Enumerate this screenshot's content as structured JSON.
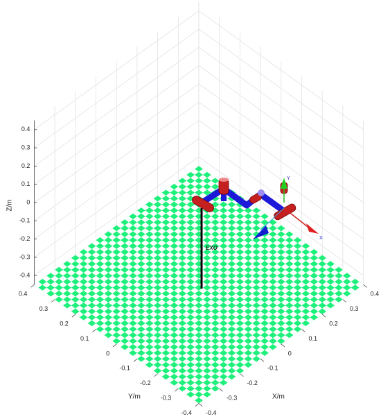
{
  "chart_data": {
    "type": "robot-3d",
    "robot_name": "EXO",
    "frame_labels": [
      "Y",
      "X"
    ],
    "xlabel": "X/m",
    "ylabel": "Y/m",
    "zlabel": "Z/m",
    "xlim": [
      -0.4,
      0.4
    ],
    "ylim": [
      -0.4,
      0.4
    ],
    "zlim": [
      -0.45,
      0.45
    ],
    "xticks": [
      -0.4,
      -0.3,
      -0.2,
      -0.1,
      0,
      0.1,
      0.2,
      0.3,
      0.4
    ],
    "yticks": [
      -0.4,
      -0.3,
      -0.2,
      -0.1,
      0,
      0.1,
      0.2,
      0.3,
      0.4
    ],
    "zticks": [
      -0.4,
      -0.3,
      -0.2,
      -0.1,
      0,
      0.1,
      0.2,
      0.3,
      0.4
    ],
    "grid": true
  }
}
